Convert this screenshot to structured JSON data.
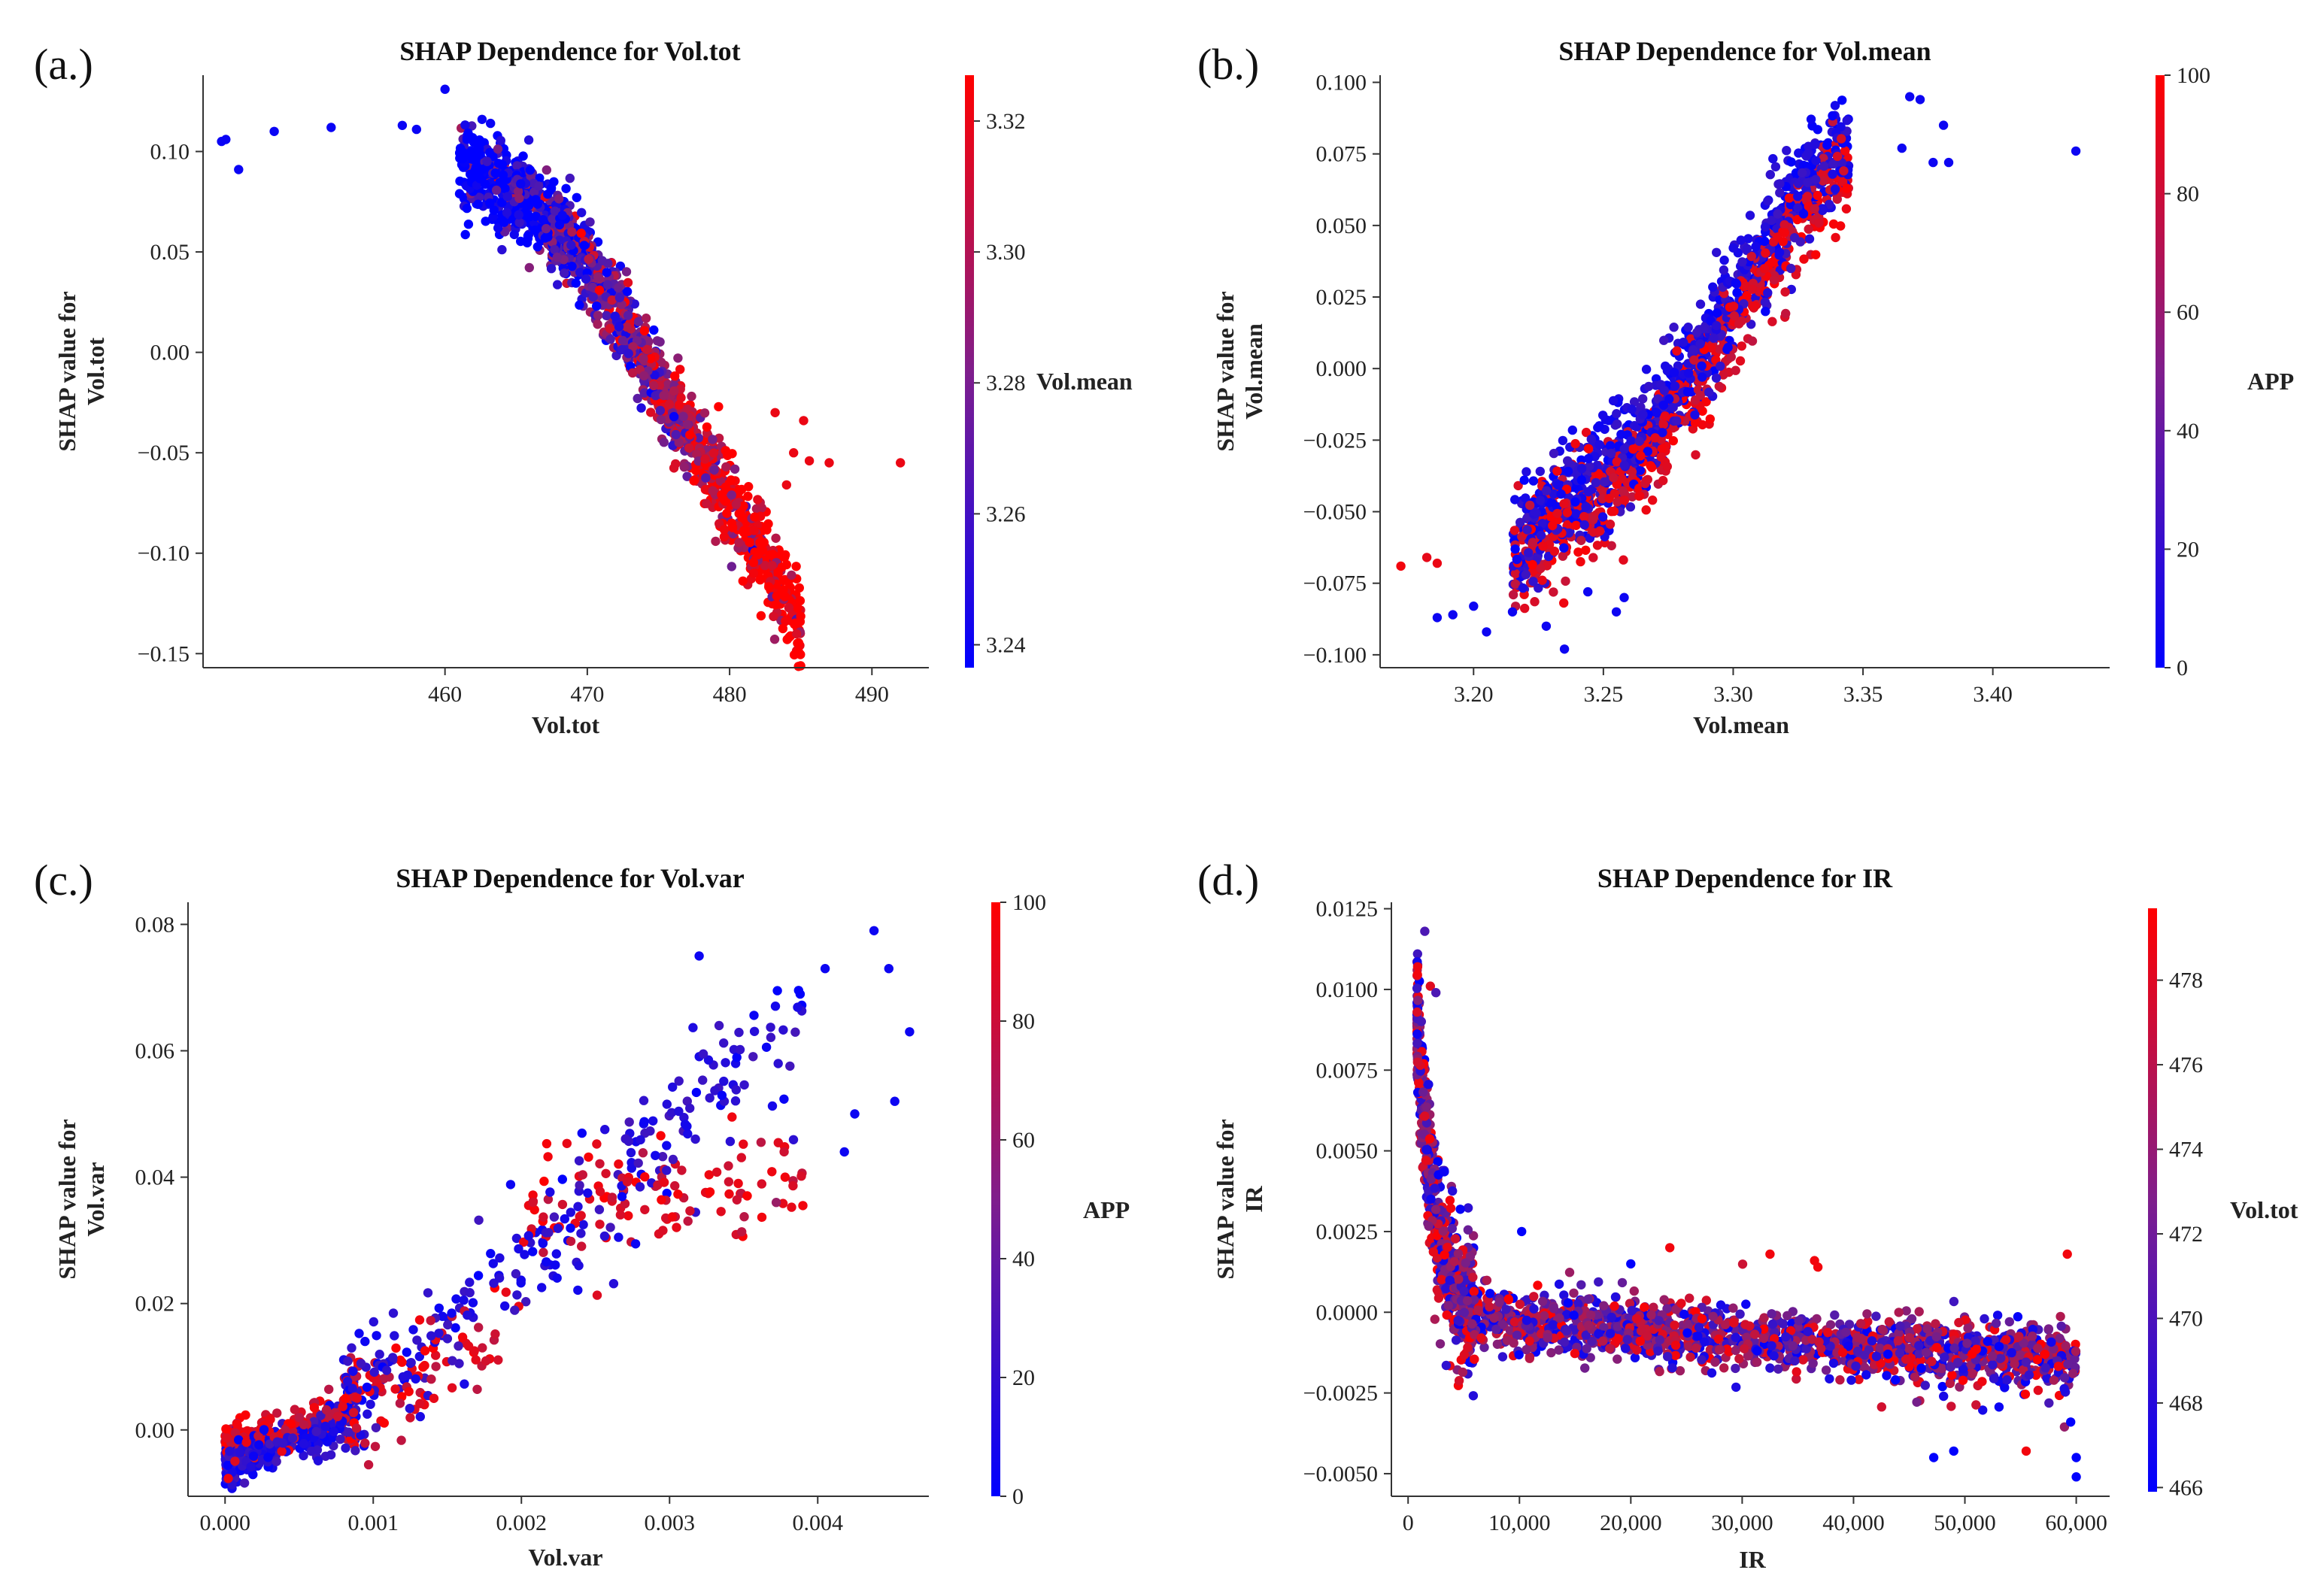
{
  "chart_data": [
    {
      "id": "a",
      "type": "scatter",
      "panel_label": "(a.)",
      "title": "SHAP Dependence for Vol.tot",
      "xlabel": "Vol.tot",
      "ylabel": [
        "SHAP value for",
        "Vol.tot"
      ],
      "xlim": [
        443,
        494
      ],
      "ylim": [
        -0.157,
        0.138
      ],
      "xticks": [
        460,
        470,
        480,
        490
      ],
      "xtick_labels": [
        "460",
        "470",
        "480",
        "490"
      ],
      "yticks": [
        -0.15,
        -0.1,
        -0.05,
        0.0,
        0.05,
        0.1
      ],
      "ytick_labels": [
        "−0.15",
        "−0.10",
        "−0.05",
        "0.00",
        "0.05",
        "0.10"
      ],
      "colorbar": {
        "label": "Vol.mean",
        "range": [
          3.2365,
          3.327
        ],
        "ticks": [
          3.24,
          3.26,
          3.28,
          3.3,
          3.32
        ],
        "tick_labels": [
          "3.24",
          "3.26",
          "3.28",
          "3.30",
          "3.32"
        ]
      },
      "generator": {
        "mode": "line",
        "n": 1500,
        "seed": 11,
        "xy_points": [
          [
            462,
            0.092
          ],
          [
            466,
            0.074
          ],
          [
            470,
            0.045
          ],
          [
            474,
            -0.005
          ],
          [
            478,
            -0.05
          ],
          [
            482,
            -0.095
          ],
          [
            485,
            -0.138
          ]
        ],
        "x_range": [
          461,
          485
        ],
        "x_beta": 1.0,
        "y_noise": 0.011,
        "color_mode": "x",
        "color_slope": 1.4,
        "color_noise": 0.3
      },
      "points": [
        {
          "x": 444.3,
          "y": 0.105,
          "c": 3.24
        },
        {
          "x": 444.6,
          "y": 0.106,
          "c": 3.24
        },
        {
          "x": 445.5,
          "y": 0.091,
          "c": 3.24
        },
        {
          "x": 448.0,
          "y": 0.11,
          "c": 3.24
        },
        {
          "x": 452.0,
          "y": 0.112,
          "c": 3.24
        },
        {
          "x": 457.0,
          "y": 0.113,
          "c": 3.24
        },
        {
          "x": 458.0,
          "y": 0.111,
          "c": 3.24
        },
        {
          "x": 460.0,
          "y": 0.131,
          "c": 3.24
        },
        {
          "x": 462.6,
          "y": 0.116,
          "c": 3.24
        },
        {
          "x": 463.2,
          "y": 0.114,
          "c": 3.24
        },
        {
          "x": 483.2,
          "y": -0.03,
          "c": 3.32
        },
        {
          "x": 485.2,
          "y": -0.034,
          "c": 3.32
        },
        {
          "x": 484.5,
          "y": -0.05,
          "c": 3.32
        },
        {
          "x": 485.6,
          "y": -0.054,
          "c": 3.32
        },
        {
          "x": 487.0,
          "y": -0.055,
          "c": 3.32
        },
        {
          "x": 492.0,
          "y": -0.055,
          "c": 3.32
        },
        {
          "x": 484.0,
          "y": -0.066,
          "c": 3.32
        }
      ]
    },
    {
      "id": "b",
      "type": "scatter",
      "panel_label": "(b.)",
      "title": "SHAP Dependence for Vol.mean",
      "xlabel": "Vol.mean",
      "ylabel": [
        "SHAP value for",
        "Vol.mean"
      ],
      "xlim": [
        3.164,
        3.445
      ],
      "ylim": [
        -0.1045,
        0.1025
      ],
      "xticks": [
        3.2,
        3.25,
        3.3,
        3.35,
        3.4
      ],
      "xtick_labels": [
        "3.20",
        "3.25",
        "3.30",
        "3.35",
        "3.40"
      ],
      "yticks": [
        -0.1,
        -0.075,
        -0.05,
        -0.025,
        0.0,
        0.025,
        0.05,
        0.075,
        0.1
      ],
      "ytick_labels": [
        "−0.100",
        "−0.075",
        "−0.050",
        "−0.025",
        "0.000",
        "0.025",
        "0.050",
        "0.075",
        "0.100"
      ],
      "colorbar": {
        "label": "APP",
        "range": [
          0,
          100
        ],
        "ticks": [
          0,
          20,
          40,
          60,
          80,
          100
        ],
        "tick_labels": [
          "0",
          "20",
          "40",
          "60",
          "80",
          "100"
        ]
      },
      "generator": {
        "mode": "line",
        "n": 1500,
        "seed": 22,
        "xy_points": [
          [
            3.21,
            -0.072
          ],
          [
            3.23,
            -0.05
          ],
          [
            3.25,
            -0.038
          ],
          [
            3.27,
            -0.022
          ],
          [
            3.29,
            0.005
          ],
          [
            3.31,
            0.035
          ],
          [
            3.33,
            0.062
          ],
          [
            3.34,
            0.072
          ]
        ],
        "x_range": [
          3.215,
          3.345
        ],
        "x_beta": 1.0,
        "y_noise": 0.0085,
        "color_mode": "bimodal",
        "blue_offset": 0.006,
        "red_offset": -0.006
      },
      "points": [
        {
          "x": 3.172,
          "y": -0.069,
          "c": 95
        },
        {
          "x": 3.182,
          "y": -0.066,
          "c": 90
        },
        {
          "x": 3.186,
          "y": -0.068,
          "c": 92
        },
        {
          "x": 3.186,
          "y": -0.087,
          "c": 5
        },
        {
          "x": 3.192,
          "y": -0.086,
          "c": 5
        },
        {
          "x": 3.2,
          "y": -0.083,
          "c": 5
        },
        {
          "x": 3.205,
          "y": -0.092,
          "c": 5
        },
        {
          "x": 3.215,
          "y": -0.085,
          "c": 5
        },
        {
          "x": 3.235,
          "y": -0.098,
          "c": 5
        },
        {
          "x": 3.228,
          "y": -0.09,
          "c": 5
        },
        {
          "x": 3.244,
          "y": -0.078,
          "c": 5
        },
        {
          "x": 3.255,
          "y": -0.085,
          "c": 5
        },
        {
          "x": 3.258,
          "y": -0.08,
          "c": 5
        },
        {
          "x": 3.365,
          "y": 0.077,
          "c": 5
        },
        {
          "x": 3.368,
          "y": 0.095,
          "c": 5
        },
        {
          "x": 3.372,
          "y": 0.094,
          "c": 5
        },
        {
          "x": 3.377,
          "y": 0.072,
          "c": 5
        },
        {
          "x": 3.381,
          "y": 0.085,
          "c": 5
        },
        {
          "x": 3.383,
          "y": 0.072,
          "c": 5
        },
        {
          "x": 3.432,
          "y": 0.076,
          "c": 5
        }
      ]
    },
    {
      "id": "c",
      "type": "scatter",
      "panel_label": "(c.)",
      "title": "SHAP Dependence for Vol.var",
      "xlabel": "Vol.var",
      "ylabel": [
        "SHAP value for",
        "Vol.var"
      ],
      "xlim": [
        -0.00025,
        0.00475
      ],
      "ylim": [
        -0.0105,
        0.0835
      ],
      "xticks": [
        0.0,
        0.001,
        0.002,
        0.003,
        0.004
      ],
      "xtick_labels": [
        "0.000",
        "0.001",
        "0.002",
        "0.003",
        "0.004"
      ],
      "yticks": [
        0.0,
        0.02,
        0.04,
        0.06,
        0.08
      ],
      "ytick_labels": [
        "0.00",
        "0.02",
        "0.04",
        "0.06",
        "0.08"
      ],
      "colorbar": {
        "label": "APP",
        "range": [
          0,
          100
        ],
        "ticks": [
          0,
          20,
          40,
          60,
          80,
          100
        ],
        "tick_labels": [
          "0",
          "20",
          "40",
          "60",
          "80",
          "100"
        ]
      },
      "generator": {
        "mode": "vvar",
        "n": 1200,
        "seed": 33
      },
      "points": [
        {
          "x": 0.00438,
          "y": 0.079,
          "c": 5
        },
        {
          "x": 0.00448,
          "y": 0.073,
          "c": 5
        },
        {
          "x": 0.00462,
          "y": 0.063,
          "c": 5
        },
        {
          "x": 0.00452,
          "y": 0.052,
          "c": 5
        },
        {
          "x": 0.00425,
          "y": 0.05,
          "c": 5
        },
        {
          "x": 0.00418,
          "y": 0.044,
          "c": 5
        },
        {
          "x": 0.00378,
          "y": 0.04,
          "c": 95
        },
        {
          "x": 0.00372,
          "y": 0.036,
          "c": 60
        },
        {
          "x": 0.00405,
          "y": 0.073,
          "c": 5
        },
        {
          "x": 0.0032,
          "y": 0.075,
          "c": 5
        }
      ]
    },
    {
      "id": "d",
      "type": "scatter",
      "panel_label": "(d.)",
      "title": "SHAP Dependence for IR",
      "xlabel": "IR",
      "ylabel": [
        "SHAP value for",
        "IR"
      ],
      "xlim": [
        -1500,
        63000
      ],
      "ylim": [
        -0.0057,
        0.0127
      ],
      "xticks": [
        0,
        10000,
        20000,
        30000,
        40000,
        50000,
        60000
      ],
      "xtick_labels": [
        "0",
        "10,000",
        "20,000",
        "30,000",
        "40,000",
        "50,000",
        "60,000"
      ],
      "yticks": [
        -0.005,
        -0.0025,
        0.0,
        0.0025,
        0.005,
        0.0075,
        0.01,
        0.0125
      ],
      "ytick_labels": [
        "−0.0050",
        "−0.0025",
        "0.0000",
        "0.0025",
        "0.0050",
        "0.0075",
        "0.0100",
        "0.0125"
      ],
      "colorbar": {
        "label": "Vol.tot",
        "range": [
          465.9,
          479.7
        ],
        "ticks": [
          466,
          468,
          470,
          472,
          474,
          476,
          478
        ],
        "tick_labels": [
          "466",
          "468",
          "470",
          "472",
          "474",
          "476",
          "478"
        ]
      },
      "generator": {
        "mode": "ir",
        "n": 2200,
        "seed": 44
      },
      "points": [
        {
          "x": 1500,
          "y": 0.0118,
          "c": 470
        },
        {
          "x": 2000,
          "y": 0.0101,
          "c": 478
        },
        {
          "x": 2500,
          "y": 0.0099,
          "c": 470
        },
        {
          "x": 23500,
          "y": 0.002,
          "c": 479
        },
        {
          "x": 32500,
          "y": 0.0018,
          "c": 479
        },
        {
          "x": 36500,
          "y": 0.0016,
          "c": 479
        },
        {
          "x": 36800,
          "y": 0.0014,
          "c": 479
        },
        {
          "x": 59200,
          "y": 0.0018,
          "c": 479
        },
        {
          "x": 20000,
          "y": 0.0015,
          "c": 466
        },
        {
          "x": 10200,
          "y": 0.0025,
          "c": 466
        },
        {
          "x": 55500,
          "y": -0.0043,
          "c": 479
        },
        {
          "x": 47200,
          "y": -0.0045,
          "c": 466
        },
        {
          "x": 49000,
          "y": -0.0043,
          "c": 466
        },
        {
          "x": 60000,
          "y": -0.0051,
          "c": 466
        },
        {
          "x": 60000,
          "y": -0.0045,
          "c": 466
        },
        {
          "x": 59500,
          "y": -0.0034,
          "c": 466
        }
      ]
    }
  ]
}
